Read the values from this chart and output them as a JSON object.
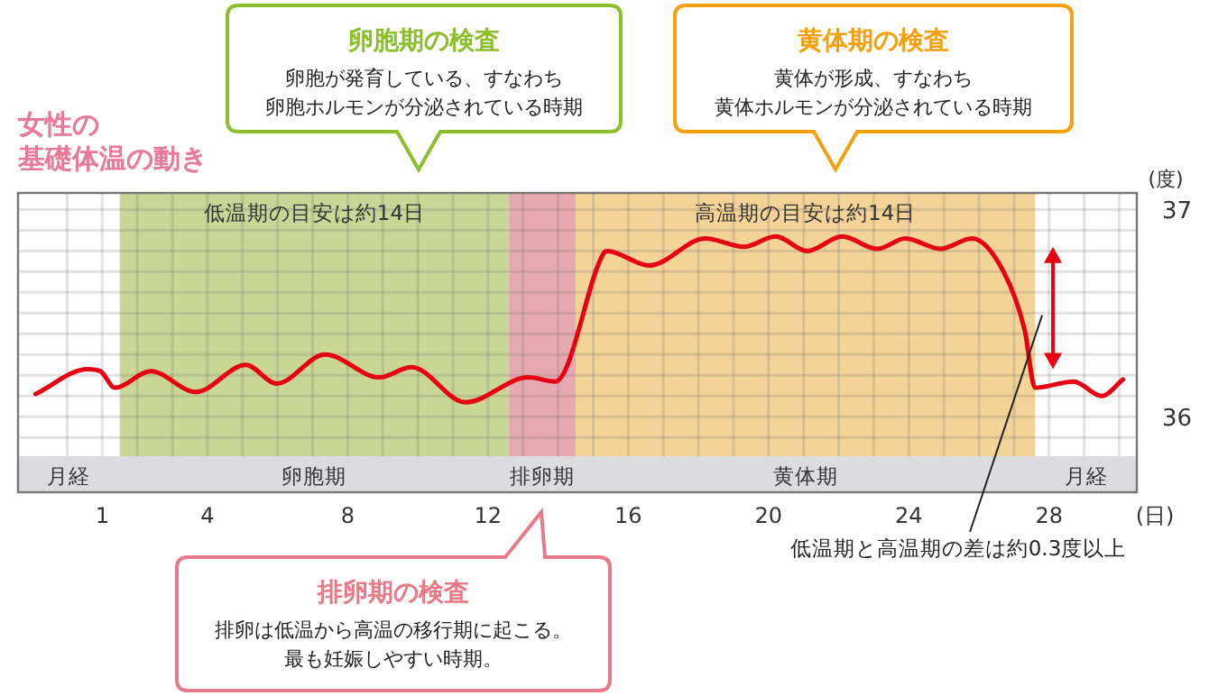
{
  "chart_data": {
    "type": "line",
    "title": "女性の",
    "subtitle": "基礎体温の動き",
    "xlabel": "(日)",
    "ylabel": "(度)",
    "x": [
      -0.9,
      0.59,
      0.95,
      1.36,
      2.38,
      3.67,
      5.1,
      5.97,
      7.36,
      8.9,
      9.82,
      11.36,
      13.15,
      13.92,
      15.3,
      15.4,
      16.6,
      18.2,
      19.3,
      20.2,
      21.1,
      22.1,
      23.1,
      23.9,
      24.9,
      25.8,
      26.7,
      27.3,
      27.6,
      28.7,
      29.5,
      30.1
    ],
    "series": [
      {
        "color": "#e60012",
        "values": [
          36.11,
          36.23,
          36.22,
          36.14,
          36.22,
          36.12,
          36.25,
          36.16,
          36.3,
          36.19,
          36.24,
          36.07,
          36.19,
          36.17,
          36.79,
          36.8,
          36.73,
          36.86,
          36.82,
          36.87,
          36.8,
          36.87,
          36.81,
          36.86,
          36.81,
          36.86,
          36.7,
          36.42,
          36.14,
          36.17,
          36.1,
          36.18
        ]
      }
    ],
    "xlim": [
      -1.4,
      30.5
    ],
    "ylim": [
      35.81,
      37.08
    ],
    "xticks": [
      {
        "value": 0,
        "label": null
      },
      1,
      {
        "value": 2,
        "label": null
      },
      {
        "value": 3,
        "label": null
      },
      4,
      {
        "value": 5,
        "label": null
      },
      {
        "value": 6,
        "label": null
      },
      {
        "value": 7,
        "label": null
      },
      8,
      {
        "value": 9,
        "label": null
      },
      {
        "value": 10,
        "label": null
      },
      {
        "value": 11,
        "label": null
      },
      12,
      {
        "value": 13,
        "label": null
      },
      {
        "value": 14,
        "label": null
      },
      {
        "value": 15,
        "label": null
      },
      16,
      {
        "value": 17,
        "label": null
      },
      {
        "value": 18,
        "label": null
      },
      {
        "value": 19,
        "label": null
      },
      20,
      {
        "value": 21,
        "label": null
      },
      {
        "value": 22,
        "label": null
      },
      {
        "value": 23,
        "label": null
      },
      24,
      {
        "value": 25,
        "label": null
      },
      {
        "value": 26,
        "label": null
      },
      {
        "value": 27,
        "label": null
      },
      28,
      {
        "value": 29,
        "label": null
      },
      {
        "value": 30,
        "label": null
      }
    ],
    "yticks": [
      {
        "value": 35.9,
        "label": null
      },
      36,
      {
        "value": 36.1,
        "label": null
      },
      {
        "value": 36.2,
        "label": null
      },
      {
        "value": 36.3,
        "label": null
      },
      {
        "value": 36.4,
        "label": null
      },
      {
        "value": 36.5,
        "label": null
      },
      {
        "value": 36.6,
        "label": null
      },
      {
        "value": 36.7,
        "label": null
      },
      {
        "value": 36.8,
        "label": null
      },
      {
        "value": 36.9,
        "label": null
      },
      37
    ],
    "grid": true,
    "marker": "none",
    "line_style": "solid",
    "bands": [
      {
        "axis": "x",
        "from": 1.5,
        "to": 12.6,
        "label": "卵胞期",
        "color": "#c9d697"
      },
      {
        "axis": "x",
        "from": 12.6,
        "to": 14.5,
        "label": "排卵期",
        "color": "#e5a9b0"
      },
      {
        "axis": "x",
        "from": 14.5,
        "to": 27.6,
        "label": "黄体期",
        "color": "#f3d397"
      }
    ],
    "annotations": [
      "卵胞期の検査",
      "卵胞が発育している、すなわち",
      "卵胞ホルモンが分泌されている時期",
      "黄体期の検査",
      "黄体が形成、すなわち",
      "黄体ホルモンが分泌されている時期",
      "排卵期の検査",
      "排卵は低温から高温の移行期に起こる。",
      "最も妊娠しやすい時期。",
      "低温期の目安は約14日",
      "高温期の目安は約14日",
      {
        "text": "低温期と高温期の差は約0.3度以上",
        "x": 27.8,
        "y": 36.49
      },
      "月経",
      "月経"
    ]
  }
}
